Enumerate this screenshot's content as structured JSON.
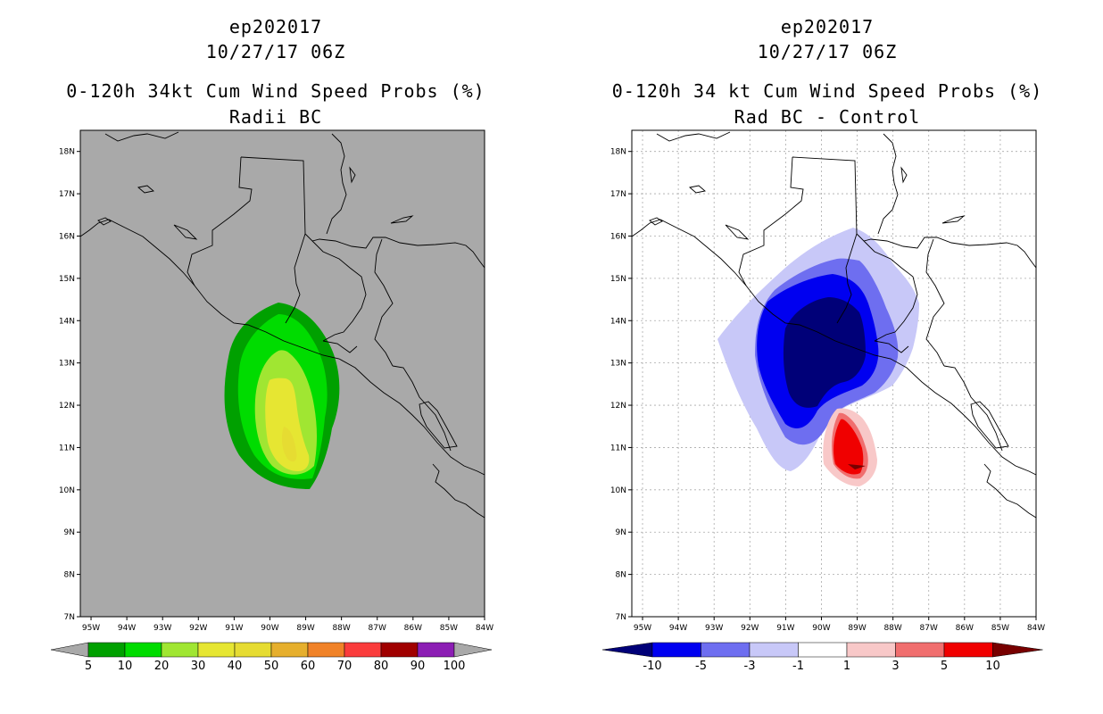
{
  "left": {
    "title_line1": "ep202017",
    "title_line2": "10/27/17 06Z",
    "title_line3": "0-120h 34kt Cum Wind Speed Probs (%)",
    "title_line4": "Radii BC",
    "background_color": "#a9a9a9",
    "colorbar": {
      "colors": [
        "#00a000",
        "#00dc00",
        "#a0e632",
        "#e6e632",
        "#e6dc32",
        "#e6af2d",
        "#f08228",
        "#fa3c3c",
        "#a00000",
        "#8c1eb4"
      ],
      "labels": [
        "5",
        "10",
        "20",
        "30",
        "40",
        "50",
        "60",
        "70",
        "80",
        "90",
        "100"
      ],
      "end_color": "#a9a9a9"
    },
    "contour_levels": [
      5,
      10,
      20,
      30,
      40,
      50
    ]
  },
  "right": {
    "title_line1": "ep202017",
    "title_line2": "10/27/17 06Z",
    "title_line3": "0-120h 34 kt Cum Wind Speed Probs (%)",
    "title_line4": "Rad BC - Control",
    "background_color": "#ffffff",
    "colorbar": {
      "colors": [
        "#0000f0",
        "#6e6ef0",
        "#c8c8f8",
        "#ffffff",
        "#f8c8c8",
        "#f06e6e",
        "#f00000"
      ],
      "labels": [
        "-10",
        "-5",
        "-3",
        "-1",
        "1",
        "3",
        "5",
        "10"
      ],
      "low_end_color": "#000078",
      "high_end_color": "#780000"
    },
    "contour_levels": [
      -10,
      -5,
      -3,
      -1,
      1,
      3,
      5,
      10
    ]
  },
  "axes": {
    "lon_labels": [
      "95W",
      "94W",
      "93W",
      "92W",
      "91W",
      "90W",
      "89W",
      "88W",
      "87W",
      "86W",
      "85W",
      "84W"
    ],
    "lat_labels": [
      "7N",
      "8N",
      "9N",
      "10N",
      "11N",
      "12N",
      "13N",
      "14N",
      "15N",
      "16N",
      "17N",
      "18N"
    ],
    "lon_range": [
      -95.3,
      -84
    ],
    "lat_range": [
      7,
      18.5
    ]
  }
}
